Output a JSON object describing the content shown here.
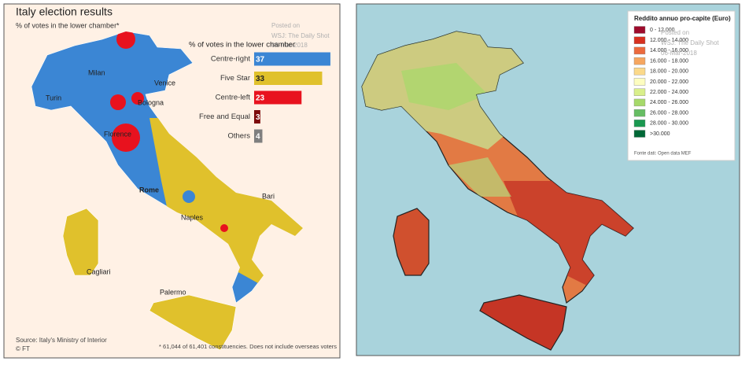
{
  "left_panel": {
    "title": "Italy election results",
    "subtitle": "% of votes in the lower chamber*",
    "chart_data": {
      "type": "bar",
      "orientation": "horizontal",
      "title": "% of votes in the lower chamber",
      "categories": [
        "Centre-right",
        "Five Star",
        "Centre-left",
        "Free and Equal",
        "Others"
      ],
      "values": [
        37,
        33,
        23,
        3,
        4
      ],
      "colors": [
        "#3b86d4",
        "#e0c12c",
        "#e8121e",
        "#7d0b0b",
        "#7f7f7f"
      ]
    },
    "cities": [
      "Milan",
      "Venice",
      "Turin",
      "Bologna",
      "Florence",
      "Rome",
      "Bari",
      "Naples",
      "Cagliari",
      "Palermo"
    ],
    "source": "Source: Italy's Ministry of Interior",
    "credit": "© FT",
    "footnote": "* 61,044 of 61,401 constituencies. Does not include overseas voters",
    "watermark": [
      "Posted on",
      "WSJ: The Daily Shot",
      "06-Mar-2018"
    ]
  },
  "right_panel": {
    "legend": {
      "title": "Reddito annuo pro-capite (Euro)",
      "items": [
        {
          "label": "0 - 12.000",
          "color": "#9e0b2c"
        },
        {
          "label": "12.000 - 14.000",
          "color": "#d7301f"
        },
        {
          "label": "14.000 - 16.000",
          "color": "#ec6a3d"
        },
        {
          "label": "16.000 - 18.000",
          "color": "#f6a65f"
        },
        {
          "label": "18.000 - 20.000",
          "color": "#fbd98a"
        },
        {
          "label": "20.000 - 22.000",
          "color": "#fdfdc0"
        },
        {
          "label": "22.000 - 24.000",
          "color": "#d9ef8b"
        },
        {
          "label": "24.000 - 26.000",
          "color": "#a6d96a"
        },
        {
          "label": "26.000 - 28.000",
          "color": "#66bd63"
        },
        {
          "label": "28.000 - 30.000",
          "color": "#1a9850"
        },
        {
          "label": ">30.000",
          "color": "#006837"
        }
      ]
    },
    "source": "Fonte dati: Open data MEF",
    "watermark": [
      "Posted on",
      "WSJ: The Daily Shot",
      "06-Mar-2018"
    ]
  }
}
